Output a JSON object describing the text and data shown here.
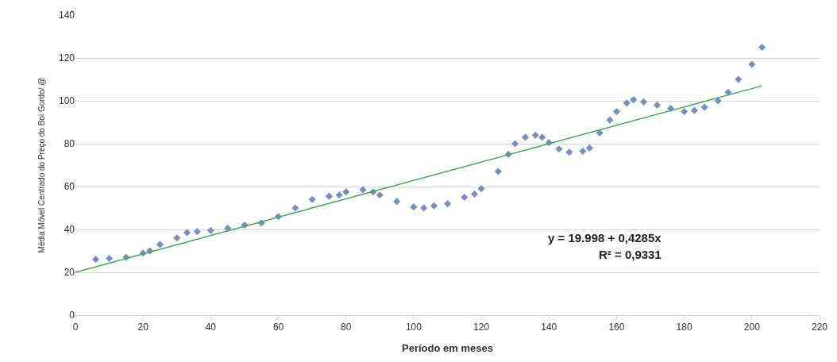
{
  "chart_data": {
    "type": "scatter",
    "xlabel": "Período em meses",
    "ylabel": "Média Móvel Centrado do Preço do Boi Gordo/ @",
    "series": [
      {
        "color": "#7b8fbf",
        "marker": "diamond",
        "x": [
          6,
          10,
          15,
          20,
          22,
          25,
          30,
          33,
          36,
          40,
          45,
          50,
          55,
          60,
          65,
          70,
          75,
          78,
          80,
          85,
          88,
          90,
          95,
          100,
          103,
          106,
          110,
          115,
          118,
          120,
          125,
          128,
          130,
          133,
          136,
          138,
          140,
          143,
          146,
          150,
          152,
          155,
          158,
          160,
          163,
          165,
          168,
          172,
          176,
          180,
          183,
          186,
          190,
          193,
          196,
          200,
          203
        ],
        "values": [
          26,
          26.5,
          27,
          29,
          30,
          33,
          36,
          38.5,
          39,
          39.5,
          40.5,
          42,
          43,
          46,
          50,
          54,
          55.5,
          56,
          57.5,
          58.5,
          57.5,
          56,
          53,
          50.5,
          50,
          51,
          52,
          55,
          56.5,
          59,
          67,
          75,
          80,
          83,
          84,
          83,
          80.5,
          77.5,
          76,
          76.5,
          78,
          85,
          91,
          95,
          99,
          100.5,
          99.5,
          98,
          96.5,
          95,
          95.5,
          97,
          100,
          104,
          110,
          117,
          125
        ]
      },
      {
        "type": "line",
        "color": "#33b04a",
        "x": [
          0,
          203
        ],
        "values": [
          20.0,
          107.0
        ]
      }
    ],
    "xlim": [
      0,
      220
    ],
    "xticks": [
      0,
      20,
      40,
      60,
      80,
      100,
      120,
      140,
      160,
      180,
      200,
      220
    ],
    "ylim": [
      0,
      140
    ],
    "yticks": [
      0,
      20,
      40,
      60,
      80,
      100,
      120,
      140
    ],
    "grid": "y",
    "legend": false,
    "annotations": [
      "y = 19.998 + 0,4285x",
      "R² = 0,9331"
    ]
  }
}
